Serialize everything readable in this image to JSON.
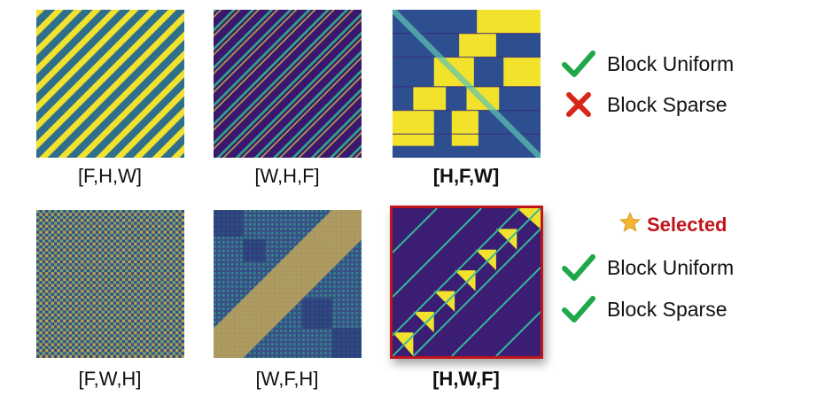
{
  "panels": [
    {
      "id": "FHW",
      "label": "[F,H,W]",
      "bold": false,
      "style": "diag-wide"
    },
    {
      "id": "WHF",
      "label": "[W,H,F]",
      "bold": false,
      "style": "diag-thin"
    },
    {
      "id": "HFW",
      "label": "[H,F,W]",
      "bold": true,
      "style": "block-yellow"
    },
    {
      "id": "FWH",
      "label": "[F,W,H]",
      "bold": false,
      "style": "checker"
    },
    {
      "id": "WFH",
      "label": "[W,F,H]",
      "bold": false,
      "style": "blocky-band"
    },
    {
      "id": "HWF",
      "label": "[H,W,F]",
      "bold": true,
      "style": "block-diag"
    }
  ],
  "legend_top": [
    {
      "text": "Block Uniform",
      "status": "check"
    },
    {
      "text": "Block Sparse",
      "status": "cross"
    }
  ],
  "legend_bottom": {
    "selected_label": "Selected",
    "items": [
      {
        "text": "Block Uniform",
        "status": "check"
      },
      {
        "text": "Block Sparse",
        "status": "check"
      }
    ]
  },
  "colors": {
    "check": "#1fa84a",
    "cross": "#d9261c",
    "selected": "#c0141b",
    "star": "#f2b632",
    "dark": "#3b0f70",
    "mid": "#2c6e8e",
    "teal": "#21a585",
    "yellow": "#f5e52a"
  }
}
